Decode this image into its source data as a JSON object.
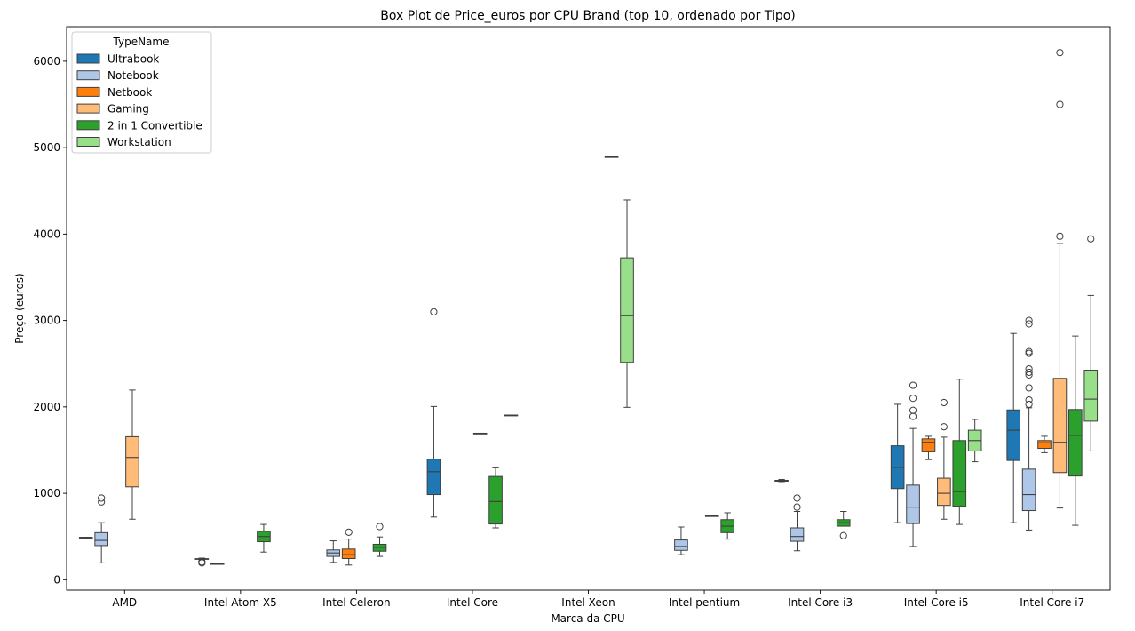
{
  "chart_data": {
    "type": "box",
    "title": "Box Plot de Price_euros por CPU Brand (top 10, ordenado por Tipo)",
    "xlabel": "Marca da CPU",
    "ylabel": "Preço (euros)",
    "ylim": [
      -120,
      6400
    ],
    "yticks": [
      0,
      1000,
      2000,
      3000,
      4000,
      5000,
      6000
    ],
    "grid": false,
    "legend": {
      "title": "TypeName",
      "placement": "top-left"
    },
    "categories": [
      "AMD",
      "Intel Atom X5",
      "Intel Celeron",
      "Intel Core",
      "Intel Xeon",
      "Intel pentium",
      "Intel Core i3",
      "Intel Core i5",
      "Intel Core i7"
    ],
    "series": [
      {
        "name": "Ultrabook",
        "color": "#1f77b4",
        "boxes": {
          "AMD": {
            "whislo": 490,
            "q1": 490,
            "med": 490,
            "q3": 490,
            "whishi": 490,
            "fliers": []
          },
          "Intel Atom X5": {
            "whislo": 230,
            "q1": 236,
            "med": 240,
            "q3": 244,
            "whishi": 250,
            "fliers": [
              195,
              205
            ]
          },
          "Intel Core": {
            "whislo": 725,
            "q1": 985,
            "med": 1250,
            "q3": 1395,
            "whishi": 2005,
            "fliers": [
              3100
            ]
          },
          "Intel Core i3": {
            "whislo": 1135,
            "q1": 1140,
            "med": 1145,
            "q3": 1150,
            "whishi": 1160,
            "fliers": []
          },
          "Intel Core i5": {
            "whislo": 660,
            "q1": 1055,
            "med": 1300,
            "q3": 1550,
            "whishi": 2030,
            "fliers": []
          },
          "Intel Core i7": {
            "whislo": 660,
            "q1": 1380,
            "med": 1730,
            "q3": 1965,
            "whishi": 2850,
            "fliers": []
          }
        }
      },
      {
        "name": "Notebook",
        "color": "#aec7e8",
        "boxes": {
          "AMD": {
            "whislo": 195,
            "q1": 395,
            "med": 455,
            "q3": 545,
            "whishi": 660,
            "fliers": [
              900,
              945
            ]
          },
          "Intel Atom X5": {
            "whislo": 180,
            "q1": 182,
            "med": 184,
            "q3": 186,
            "whishi": 190,
            "fliers": []
          },
          "Intel Celeron": {
            "whislo": 200,
            "q1": 270,
            "med": 310,
            "q3": 345,
            "whishi": 450,
            "fliers": []
          },
          "Intel pentium": {
            "whislo": 290,
            "q1": 340,
            "med": 385,
            "q3": 460,
            "whishi": 610,
            "fliers": []
          },
          "Intel Core i3": {
            "whislo": 335,
            "q1": 445,
            "med": 500,
            "q3": 600,
            "whishi": 790,
            "fliers": [
              840,
              945
            ]
          },
          "Intel Core i5": {
            "whislo": 385,
            "q1": 650,
            "med": 840,
            "q3": 1095,
            "whishi": 1750,
            "fliers": [
              1890,
              1960,
              2100,
              2250
            ]
          },
          "Intel Core i7": {
            "whislo": 575,
            "q1": 800,
            "med": 985,
            "q3": 1280,
            "whishi": 1990,
            "fliers": [
              2030,
              2080,
              2220,
              2370,
              2400,
              2440,
              2620,
              2640,
              2960,
              3000
            ]
          }
        }
      },
      {
        "name": "Netbook",
        "color": "#ff7f0e",
        "boxes": {
          "Intel Celeron": {
            "whislo": 170,
            "q1": 245,
            "med": 290,
            "q3": 355,
            "whishi": 470,
            "fliers": [
              550
            ]
          },
          "Intel Core i5": {
            "whislo": 1390,
            "q1": 1480,
            "med": 1590,
            "q3": 1630,
            "whishi": 1660,
            "fliers": []
          },
          "Intel Core i7": {
            "whislo": 1470,
            "q1": 1520,
            "med": 1585,
            "q3": 1610,
            "whishi": 1660,
            "fliers": []
          }
        }
      },
      {
        "name": "Gaming",
        "color": "#ffbb78",
        "boxes": {
          "AMD": {
            "whislo": 700,
            "q1": 1075,
            "med": 1415,
            "q3": 1655,
            "whishi": 2195,
            "fliers": []
          },
          "Intel Core": {
            "whislo": 1695,
            "q1": 1695,
            "med": 1695,
            "q3": 1695,
            "whishi": 1695,
            "fliers": []
          },
          "Intel pentium": {
            "whislo": 740,
            "q1": 740,
            "med": 740,
            "q3": 740,
            "whishi": 740,
            "fliers": []
          },
          "Intel Core i5": {
            "whislo": 700,
            "q1": 860,
            "med": 1000,
            "q3": 1175,
            "whishi": 1650,
            "fliers": [
              1770,
              2050
            ]
          },
          "Intel Core i7": {
            "whislo": 830,
            "q1": 1240,
            "med": 1590,
            "q3": 2330,
            "whishi": 3890,
            "fliers": [
              3975,
              5500,
              6100
            ]
          }
        }
      },
      {
        "name": "2 in 1 Convertible",
        "color": "#2ca02c",
        "boxes": {
          "Intel Atom X5": {
            "whislo": 320,
            "q1": 440,
            "med": 500,
            "q3": 560,
            "whishi": 640,
            "fliers": []
          },
          "Intel Celeron": {
            "whislo": 270,
            "q1": 330,
            "med": 375,
            "q3": 410,
            "whishi": 495,
            "fliers": [
              615
            ]
          },
          "Intel Core": {
            "whislo": 600,
            "q1": 645,
            "med": 905,
            "q3": 1195,
            "whishi": 1295,
            "fliers": []
          },
          "Intel Xeon": {
            "whislo": 4895,
            "q1": 4895,
            "med": 4895,
            "q3": 4895,
            "whishi": 4895,
            "fliers": []
          },
          "Intel pentium": {
            "whislo": 470,
            "q1": 545,
            "med": 620,
            "q3": 695,
            "whishi": 775,
            "fliers": []
          },
          "Intel Core i3": {
            "whislo": 620,
            "q1": 620,
            "med": 660,
            "q3": 695,
            "whishi": 790,
            "fliers": [
              510
            ]
          },
          "Intel Core i5": {
            "whislo": 640,
            "q1": 850,
            "med": 1020,
            "q3": 1610,
            "whishi": 2320,
            "fliers": []
          },
          "Intel Core i7": {
            "whislo": 630,
            "q1": 1200,
            "med": 1670,
            "q3": 1970,
            "whishi": 2820,
            "fliers": []
          }
        }
      },
      {
        "name": "Workstation",
        "color": "#98df8a",
        "boxes": {
          "Intel Core": {
            "whislo": 1905,
            "q1": 1905,
            "med": 1905,
            "q3": 1905,
            "whishi": 1905,
            "fliers": []
          },
          "Intel Xeon": {
            "whislo": 1995,
            "q1": 2515,
            "med": 3055,
            "q3": 3725,
            "whishi": 4395,
            "fliers": []
          },
          "Intel Core i5": {
            "whislo": 1365,
            "q1": 1490,
            "med": 1610,
            "q3": 1730,
            "whishi": 1855,
            "fliers": []
          },
          "Intel Core i7": {
            "whislo": 1490,
            "q1": 1835,
            "med": 2090,
            "q3": 2425,
            "whishi": 3290,
            "fliers": [
              3945
            ]
          }
        }
      }
    ]
  }
}
